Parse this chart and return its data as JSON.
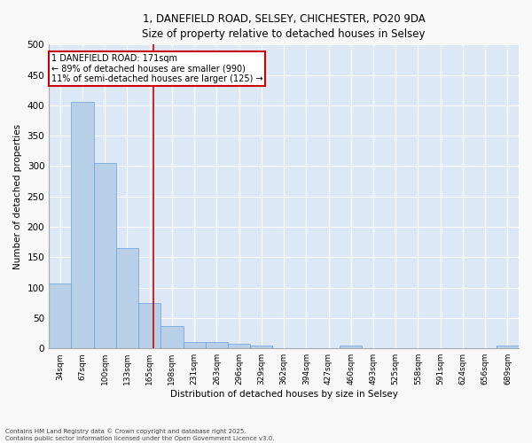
{
  "title_line1": "1, DANEFIELD ROAD, SELSEY, CHICHESTER, PO20 9DA",
  "title_line2": "Size of property relative to detached houses in Selsey",
  "xlabel": "Distribution of detached houses by size in Selsey",
  "ylabel": "Number of detached properties",
  "categories": [
    "34sqm",
    "67sqm",
    "100sqm",
    "133sqm",
    "165sqm",
    "198sqm",
    "231sqm",
    "263sqm",
    "296sqm",
    "329sqm",
    "362sqm",
    "394sqm",
    "427sqm",
    "460sqm",
    "493sqm",
    "525sqm",
    "558sqm",
    "591sqm",
    "624sqm",
    "656sqm",
    "689sqm"
  ],
  "values": [
    107,
    405,
    305,
    165,
    75,
    37,
    11,
    10,
    7,
    4,
    0,
    0,
    0,
    4,
    0,
    0,
    0,
    0,
    0,
    0,
    4
  ],
  "bar_color": "#b8cfe8",
  "bar_edge_color": "#6a9fd8",
  "background_color": "#dce8f5",
  "grid_color": "#ffffff",
  "annotation_text": "1 DANEFIELD ROAD: 171sqm\n← 89% of detached houses are smaller (990)\n11% of semi-detached houses are larger (125) →",
  "annotation_box_color": "#ffffff",
  "annotation_box_edge_color": "#cc0000",
  "vline_color": "#cc0000",
  "ylim": [
    0,
    500
  ],
  "yticks": [
    0,
    50,
    100,
    150,
    200,
    250,
    300,
    350,
    400,
    450,
    500
  ],
  "fig_background": "#f8f8f8",
  "footer_line1": "Contains HM Land Registry data © Crown copyright and database right 2025.",
  "footer_line2": "Contains public sector information licensed under the Open Government Licence v3.0."
}
